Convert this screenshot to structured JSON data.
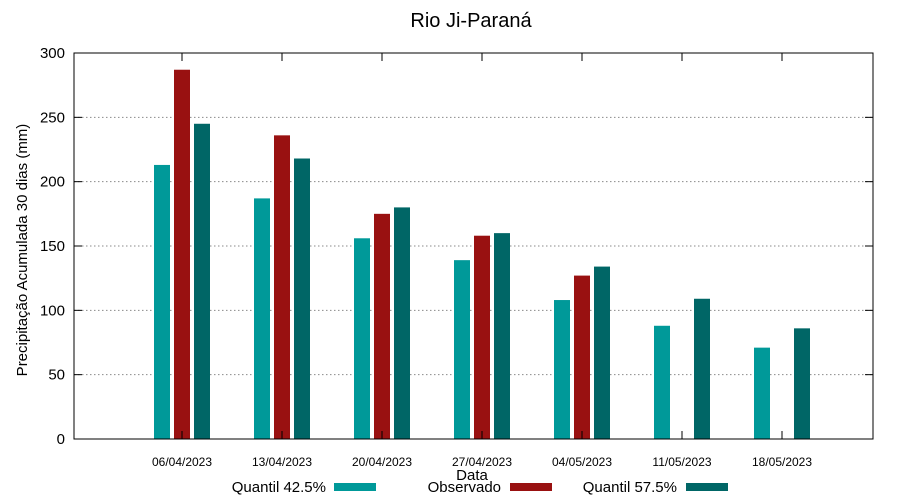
{
  "chart_data": {
    "type": "bar",
    "title": "Rio Ji-Paraná",
    "xlabel": "Data",
    "ylabel": "Precipitação Acumulada 30 dias (mm)",
    "ylim": [
      0,
      300
    ],
    "yticks": [
      0,
      50,
      100,
      150,
      200,
      250,
      300
    ],
    "grid": true,
    "legend_position": "bottom",
    "categories": [
      "06/04/2023",
      "13/04/2023",
      "20/04/2023",
      "27/04/2023",
      "04/05/2023",
      "11/05/2023",
      "18/05/2023"
    ],
    "series": [
      {
        "name": "Quantil 42.5%",
        "color": "#009999",
        "values": [
          213,
          187,
          156,
          139,
          108,
          88,
          71
        ]
      },
      {
        "name": "Observado",
        "color": "#991111",
        "values": [
          287,
          236,
          175,
          158,
          127,
          null,
          null
        ]
      },
      {
        "name": "Quantil 57.5%",
        "color": "#006666",
        "values": [
          245,
          218,
          180,
          160,
          134,
          109,
          86
        ]
      }
    ]
  }
}
